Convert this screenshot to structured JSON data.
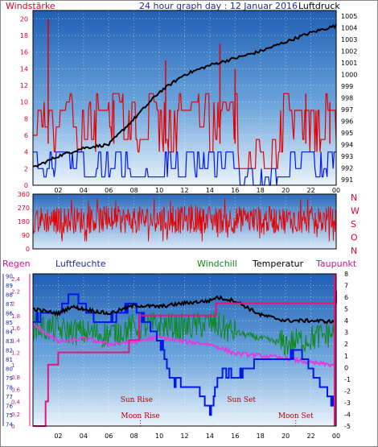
{
  "chart_data": [
    {
      "type": "line",
      "title": "24 hour graph day : 12 Januar 2016",
      "left_label": "Windstärke",
      "right_label": "Luftdruck",
      "x_ticks": [
        "02",
        "04",
        "06",
        "08",
        "10",
        "12",
        "14",
        "16",
        "18",
        "20",
        "22",
        "00"
      ],
      "y_left_ticks": [
        "0",
        "2",
        "4",
        "6",
        "8",
        "10",
        "12",
        "14",
        "16",
        "18",
        "20"
      ],
      "y_left_range": [
        0,
        21
      ],
      "y_right_ticks": [
        "991",
        "992",
        "993",
        "994",
        "995",
        "996",
        "997",
        "998",
        "999",
        "1000",
        "1001",
        "1002",
        "1003",
        "1004",
        "1005"
      ],
      "y_right_range": [
        990.5,
        1005.5
      ],
      "pressure_hpa": {
        "hours": [
          0,
          2,
          4,
          6,
          8,
          10,
          12,
          14,
          16,
          18,
          20,
          22,
          24
        ],
        "values": [
          992.0,
          993.0,
          993.7,
          994.0,
          996.2,
          998.5,
          1000.0,
          1000.8,
          1001.4,
          1002.0,
          1002.8,
          1003.6,
          1004.2
        ]
      },
      "wind_speed_range": [
        2,
        10
      ],
      "wind_gust_peak": 20
    },
    {
      "type": "line",
      "left_ticks": [
        "0",
        "90",
        "180",
        "270",
        "360"
      ],
      "y_range": [
        0,
        360
      ],
      "right_labels": [
        "N",
        "W",
        "S",
        "O",
        "N"
      ],
      "wind_direction_range_deg": [
        50,
        330
      ]
    },
    {
      "type": "line",
      "left_labels": [
        "Regen",
        "Luftfeuchte"
      ],
      "right_labels": [
        "Windchill",
        "Temperatur",
        "Taupunkt"
      ],
      "rain_ticks": [
        "0",
        "0.2",
        "0.4",
        "0.6",
        "0.8",
        "1",
        "1.2",
        "1.4",
        "1.6",
        "1.8",
        "2",
        "2.2",
        "2.4"
      ],
      "humidity_ticks": [
        "74",
        "75",
        "76",
        "77",
        "78",
        "79",
        "80",
        "81",
        "82",
        "83",
        "84",
        "85",
        "86",
        "87",
        "88",
        "89",
        "90"
      ],
      "temp_ticks": [
        "-5",
        "-4",
        "-3",
        "-2",
        "-1",
        "0",
        "1",
        "2",
        "3",
        "4",
        "5",
        "6",
        "7",
        "8"
      ],
      "temp_range": [
        -5,
        8
      ],
      "x_ticks": [
        "02",
        "04",
        "06",
        "08",
        "10",
        "12",
        "14",
        "16",
        "18",
        "20",
        "22",
        "00"
      ],
      "events": [
        {
          "label": "Sun Rise",
          "hour": 8.2
        },
        {
          "label": "Moon Rise",
          "hour": 8.5
        },
        {
          "label": "Sun Set",
          "hour": 16.5
        },
        {
          "label": "Moon Set",
          "hour": 20.8
        }
      ],
      "temperature": {
        "hours": [
          0,
          2,
          3,
          4,
          6,
          8,
          10,
          12,
          14,
          14.5,
          16,
          18,
          20,
          22,
          24
        ],
        "values": [
          5.0,
          4.6,
          5.2,
          5.0,
          4.6,
          5.3,
          5.2,
          5.5,
          5.7,
          6.0,
          5.7,
          4.5,
          4.0,
          4.0,
          3.9
        ]
      },
      "windchill": {
        "hours": [
          0,
          2,
          4,
          6,
          8,
          10,
          12,
          14,
          16,
          18,
          20,
          22,
          24
        ],
        "values": [
          3.5,
          3.2,
          3.0,
          2.8,
          3.5,
          3.6,
          3.4,
          3.8,
          3.0,
          2.5,
          2.0,
          2.5,
          3.0
        ]
      },
      "dewpoint": {
        "hours": [
          0,
          1,
          2,
          3,
          4,
          6,
          8,
          10,
          12,
          14,
          16,
          18,
          20,
          22,
          24
        ],
        "values": [
          3.7,
          3.0,
          2.2,
          2.3,
          2.5,
          2.0,
          2.2,
          2.6,
          2.2,
          2.0,
          1.2,
          1.0,
          0.8,
          0.4,
          0.2
        ]
      },
      "humidity": {
        "hours": [
          0,
          1,
          2,
          3,
          4,
          5,
          6,
          7,
          7.5,
          8,
          9,
          10,
          10.5,
          11,
          12,
          13,
          14,
          14.5,
          15,
          16,
          17,
          18,
          19,
          20,
          21,
          22,
          23,
          24
        ],
        "values": [
          85,
          86,
          86,
          88,
          87,
          85,
          85,
          86,
          87,
          87,
          85,
          83,
          81,
          79,
          78,
          78,
          75,
          78,
          80,
          79,
          80,
          81,
          81,
          81,
          82,
          80,
          78,
          76
        ]
      },
      "rain_mm": {
        "hours": [
          0,
          1,
          1.2,
          2,
          6,
          7.6,
          8.4,
          14.5,
          24
        ],
        "values": [
          0,
          0.4,
          1.0,
          1.2,
          1.2,
          1.4,
          1.8,
          2.0,
          2.2
        ]
      }
    }
  ]
}
